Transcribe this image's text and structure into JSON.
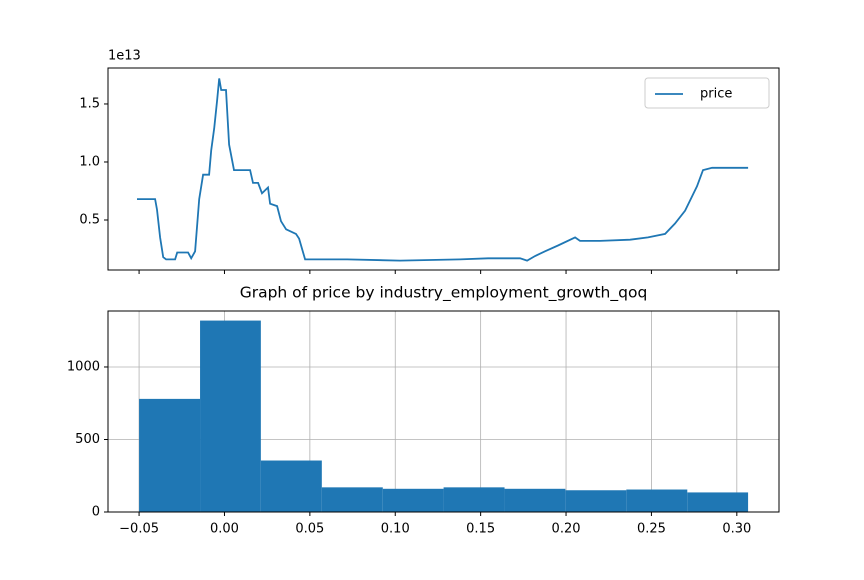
{
  "chart_data": [
    {
      "type": "line",
      "offset_text": "1e13",
      "legend": "upper right",
      "x": [
        -0.0512,
        -0.0406,
        -0.0395,
        -0.0377,
        -0.0359,
        -0.0342,
        -0.0289,
        -0.0277,
        -0.0213,
        -0.0195,
        -0.0172,
        -0.0148,
        -0.0125,
        -0.009,
        -0.0078,
        -0.006,
        -0.0043,
        -0.0031,
        -0.0019,
        0.0009,
        0.0027,
        0.0056,
        0.015,
        0.0167,
        0.0197,
        0.022,
        0.0255,
        0.0267,
        0.0308,
        0.0331,
        0.0361,
        0.0419,
        0.0437,
        0.0472,
        0.0718,
        0.1028,
        0.1379,
        0.1543,
        0.1731,
        0.1772,
        0.1819,
        0.1877,
        0.1953,
        0.2053,
        0.2082,
        0.2199,
        0.2375,
        0.248,
        0.258,
        0.2638,
        0.2697,
        0.2767,
        0.2802,
        0.2855,
        0.3066
      ],
      "series": [
        {
          "name": "price",
          "color": "#1f77b4",
          "values": [
            0.68,
            0.68,
            0.59,
            0.35,
            0.18,
            0.16,
            0.16,
            0.22,
            0.22,
            0.17,
            0.23,
            0.68,
            0.89,
            0.89,
            1.1,
            1.29,
            1.53,
            1.72,
            1.62,
            1.62,
            1.15,
            0.93,
            0.93,
            0.82,
            0.82,
            0.73,
            0.78,
            0.64,
            0.62,
            0.49,
            0.42,
            0.38,
            0.34,
            0.16,
            0.16,
            0.15,
            0.16,
            0.17,
            0.17,
            0.15,
            0.19,
            0.23,
            0.28,
            0.35,
            0.32,
            0.32,
            0.33,
            0.35,
            0.38,
            0.47,
            0.58,
            0.79,
            0.93,
            0.95,
            0.95
          ]
        }
      ],
      "xlim": [
        -0.0682,
        0.3247
      ],
      "ylim": [
        0.069,
        1.81
      ],
      "xticks": [
        -0.05,
        0,
        0.05,
        0.1,
        0.15,
        0.2,
        0.25,
        0.3
      ],
      "yticks": [
        0.5,
        {
          "value": 1,
          "label": "1.0"
        },
        1.5
      ]
    },
    {
      "type": "histogram",
      "title": "Graph of price by industry_employment_growth_qoq",
      "color": "#1f77b4",
      "grid": true,
      "bins": [
        -0.05,
        -0.0143,
        0.0213,
        0.057,
        0.0927,
        0.1283,
        0.164,
        0.1996,
        0.2353,
        0.271,
        0.3066
      ],
      "values": [
        780,
        1320,
        355,
        170,
        160,
        170,
        160,
        150,
        155,
        135
      ],
      "xlim": [
        -0.0682,
        0.3247
      ],
      "ylim": [
        0,
        1386
      ],
      "xticks": [
        {
          "value": -0.05,
          "label": "−0.05"
        },
        {
          "value": 0,
          "label": "0.00"
        },
        0.05,
        {
          "value": 0.1,
          "label": "0.10"
        },
        0.15,
        {
          "value": 0.2,
          "label": "0.20"
        },
        0.25,
        {
          "value": 0.3,
          "label": "0.30"
        }
      ],
      "yticks": [
        0,
        500,
        1000
      ]
    }
  ]
}
